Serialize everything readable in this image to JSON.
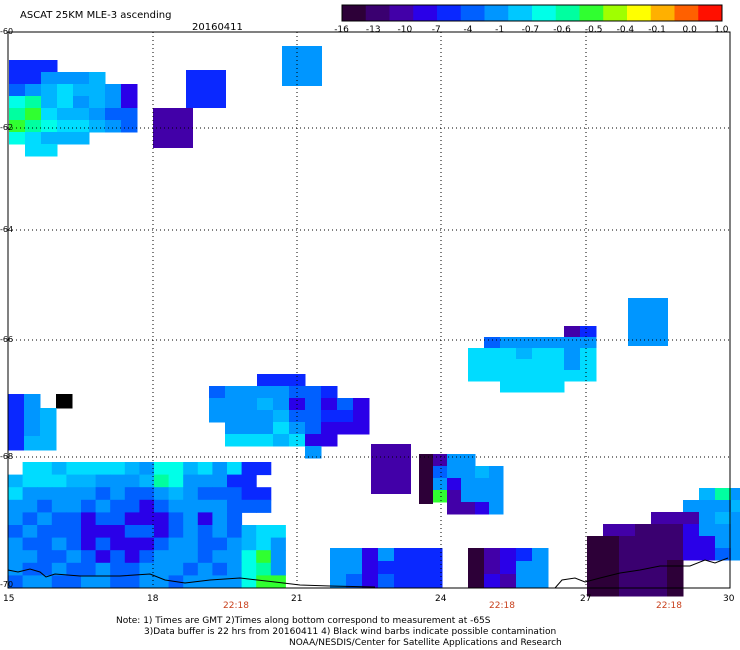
{
  "header": {
    "title": "ASCAT 25KM MLE-3 ascending",
    "date": "20160411"
  },
  "colorbar": {
    "labels": [
      "-16",
      "-13",
      "-10",
      "-7",
      "-4",
      "-1",
      "-0.7",
      "-0.6",
      "-0.5",
      "-0.4",
      "-0.1",
      "0.0",
      "1.0"
    ],
    "colors": [
      "#2d0038",
      "#3a0070",
      "#4200a8",
      "#2a00e8",
      "#0a28ff",
      "#0060ff",
      "#0096ff",
      "#00c8ff",
      "#00ffe8",
      "#00ffa0",
      "#30ff30",
      "#a0ff00",
      "#ffff00",
      "#ffb000",
      "#ff6000",
      "#ff1000"
    ]
  },
  "map": {
    "lat_labels": [
      "-60",
      "-62",
      "-64",
      "-66",
      "-68",
      "-70"
    ],
    "lon_labels": [
      "15",
      "18",
      "21",
      "24",
      "27",
      "30"
    ],
    "time_labels": [
      "22:18",
      "22:18",
      "22:18"
    ],
    "land_color": "#000000",
    "grid": true
  },
  "notes": {
    "line1": "Note: 1) Times are GMT 2)Times along bottom correspond to measurement at -65S",
    "line2": "3)Data buffer is 22 hrs from 20160411 4) Black wind barbs indicate possible contamination",
    "line3": "NOAA/NESDIS/Center for Satellite Applications and Research"
  }
}
